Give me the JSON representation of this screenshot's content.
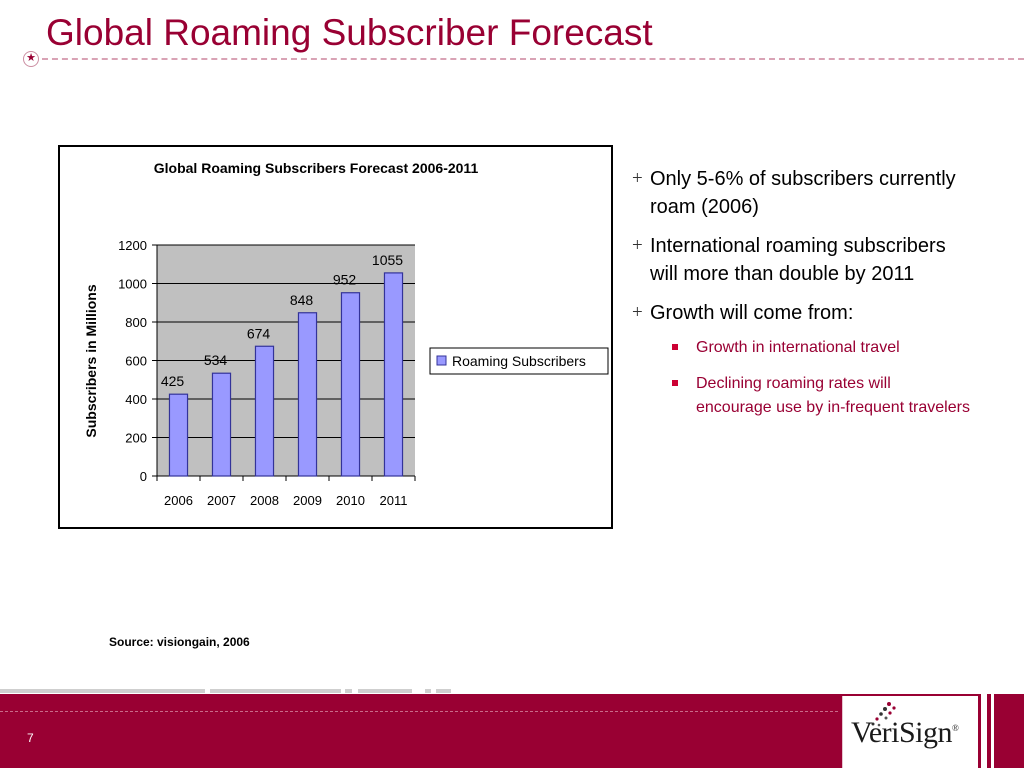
{
  "slide": {
    "title": "Global Roaming Subscriber Forecast",
    "page_number": "7",
    "source": "Source: visiongain, 2006"
  },
  "bullets": [
    {
      "text": "Only 5-6% of subscribers currently roam (2006)"
    },
    {
      "text": "International roaming subscribers will more than double by 2011"
    },
    {
      "text": "Growth will come from:"
    }
  ],
  "sub_bullets": [
    {
      "text": "Growth in international travel"
    },
    {
      "text": "Declining roaming rates will encourage use by in-frequent travelers"
    }
  ],
  "logo": {
    "text": "VeriSign",
    "mark": "®"
  },
  "colors": {
    "brand": "#990033",
    "bar_fill": "#9999ff",
    "bar_stroke": "#333399",
    "plot_bg": "#c0c0c0"
  },
  "chart_data": {
    "type": "bar",
    "title": "Global Roaming Subscribers Forecast 2006-2011",
    "xlabel": "",
    "ylabel": "Subscribers in Millions",
    "categories": [
      "2006",
      "2007",
      "2008",
      "2009",
      "2010",
      "2011"
    ],
    "series": [
      {
        "name": "Roaming Subscribers",
        "values": [
          425,
          534,
          674,
          848,
          952,
          1055
        ]
      }
    ],
    "ylim": [
      0,
      1200
    ],
    "yticks": [
      0,
      200,
      400,
      600,
      800,
      1000,
      1200
    ],
    "grid": true,
    "legend": "right",
    "data_labels": true
  }
}
